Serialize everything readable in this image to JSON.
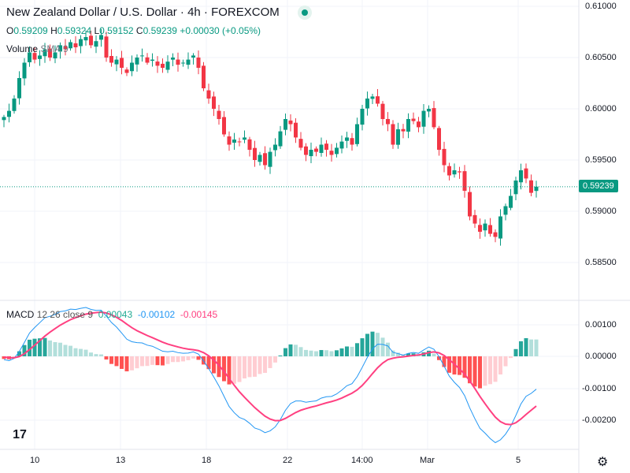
{
  "header": {
    "title": "New Zealand Dollar / U.S. Dollar · 4h · FOREXCOM",
    "o_label": "O",
    "o": "0.59209",
    "h_label": "H",
    "h": "0.59324",
    "l_label": "L",
    "l": "0.59152",
    "c_label": "C",
    "c": "0.59239",
    "change": "+0.00030 (+0.05%)"
  },
  "volume": {
    "label": "Volume",
    "sma": "SMA 9"
  },
  "macd": {
    "label": "MACD",
    "params": "12 26 close 9",
    "hist": "0.00043",
    "macd": "-0.00102",
    "signal": "-0.00145"
  },
  "price_axis": [
    "0.61000",
    "0.60500",
    "0.60000",
    "0.59500",
    "0.59000",
    "0.58500"
  ],
  "macd_axis": [
    "0.00100",
    "0.00000",
    "-0.00100",
    "-0.00200"
  ],
  "time_axis": [
    "10",
    "13",
    "18",
    "22",
    "14:00",
    "Mar",
    "5"
  ],
  "last_price": "0.59239",
  "colors": {
    "up": "#089981",
    "down": "#f23645",
    "macd": "#2196f3",
    "signal": "#ff4081"
  },
  "chart_data": {
    "type": "candlestick",
    "ylim": [
      0.583,
      0.6105
    ],
    "closes": [
      0.5992,
      0.5998,
      0.601,
      0.603,
      0.6045,
      0.6055,
      0.6048,
      0.6052,
      0.6058,
      0.605,
      0.6055,
      0.6062,
      0.6058,
      0.6065,
      0.606,
      0.6068,
      0.607,
      0.6062,
      0.6066,
      0.6072,
      0.605,
      0.6045,
      0.6048,
      0.604,
      0.6035,
      0.6045,
      0.605,
      0.6052,
      0.6045,
      0.6048,
      0.6042,
      0.604,
      0.6046,
      0.605,
      0.6043,
      0.6045,
      0.6048,
      0.6052,
      0.604,
      0.602,
      0.601,
      0.6,
      0.599,
      0.5975,
      0.5965,
      0.597,
      0.5968,
      0.5972,
      0.596,
      0.595,
      0.5955,
      0.5945,
      0.5958,
      0.5965,
      0.5978,
      0.599,
      0.5985,
      0.5972,
      0.5962,
      0.5955,
      0.596,
      0.5958,
      0.5965,
      0.596,
      0.5955,
      0.5962,
      0.5968,
      0.5972,
      0.5965,
      0.5985,
      0.6,
      0.601,
      0.6012,
      0.6005,
      0.599,
      0.5985,
      0.5965,
      0.598,
      0.5978,
      0.599,
      0.5988,
      0.5982,
      0.5998,
      0.6,
      0.5982,
      0.596,
      0.5945,
      0.5935,
      0.594,
      0.5938,
      0.592,
      0.5895,
      0.5888,
      0.588,
      0.5888,
      0.5878,
      0.5875,
      0.5895,
      0.5905,
      0.5915,
      0.593,
      0.594,
      0.5932,
      0.5918,
      0.5924
    ]
  }
}
